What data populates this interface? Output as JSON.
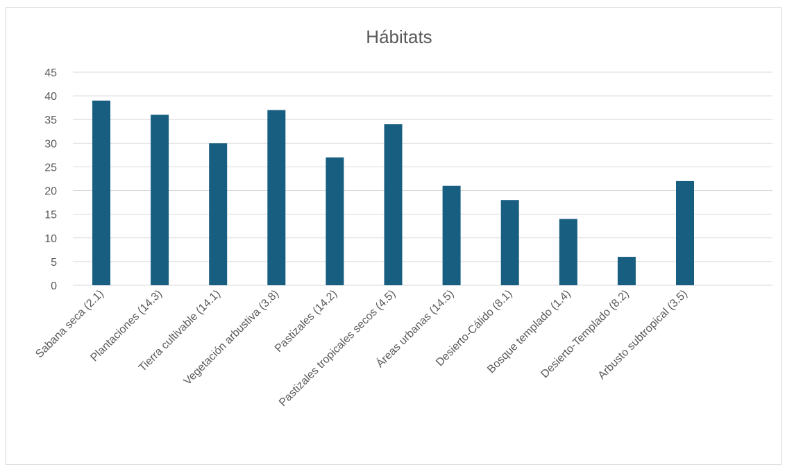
{
  "chart_data": {
    "type": "bar",
    "title": "Hábitats",
    "categories": [
      "Sabana seca (2.1)",
      "Plantaciones (14.3)",
      "Tierra cultivable (14.1)",
      "Vegetación arbustiva (3.8)",
      "Pastizales (14.2)",
      "Pastizales tropicales secos (4.5)",
      "Áreas urbanas (14.5)",
      "Desierto-Cálido (8.1)",
      "Bosque templado (1.4)",
      "Desierto-Templado (8.2)",
      "Arbusto subtropical (3.5)"
    ],
    "values": [
      39,
      36,
      30,
      37,
      27,
      34,
      21,
      18,
      14,
      6,
      22
    ],
    "xlabel": "",
    "ylabel": "",
    "ylim": [
      0,
      45
    ],
    "yticks": [
      "0",
      "5",
      "10",
      "15",
      "20",
      "25",
      "30",
      "35",
      "40",
      "45"
    ],
    "grid": true,
    "legend": "none",
    "bar_color": "#175e80"
  }
}
